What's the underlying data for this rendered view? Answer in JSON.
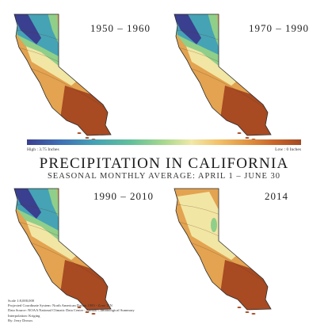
{
  "title": "PRECIPITATION IN CALIFORNIA",
  "subtitle": "SEASONAL MONTHLY AVERAGE: APRIL 1 – JUNE 30",
  "maps": [
    {
      "period": "1950 – 1960",
      "wetness": 1.0
    },
    {
      "period": "1970 – 1990",
      "wetness": 0.8
    },
    {
      "period": "1990 – 2010",
      "wetness": 1.0
    },
    {
      "period": "2014",
      "wetness": 0.15
    }
  ],
  "legend": {
    "high": "High : 3.75 Inches",
    "low": "Low : 0 Inches",
    "max_inches": 3.75,
    "min_inches": 0
  },
  "info_lines": [
    "Scale 1:8,000,000",
    "Projected Coordinate System: North American Datum 1983 - Zone 11N",
    "Data Source: NOAA National Climatic Data Center - Annual Climatological Summary",
    "Interpolation: Kriging",
    "By: Jerry Drosos"
  ],
  "colors": {
    "very_wet": "#3a3f8f",
    "wet": "#45a3b5",
    "moderate": "#8fcf8a",
    "light": "#f2e6a4",
    "dry": "#e3a350",
    "very_dry": "#a84a22"
  }
}
